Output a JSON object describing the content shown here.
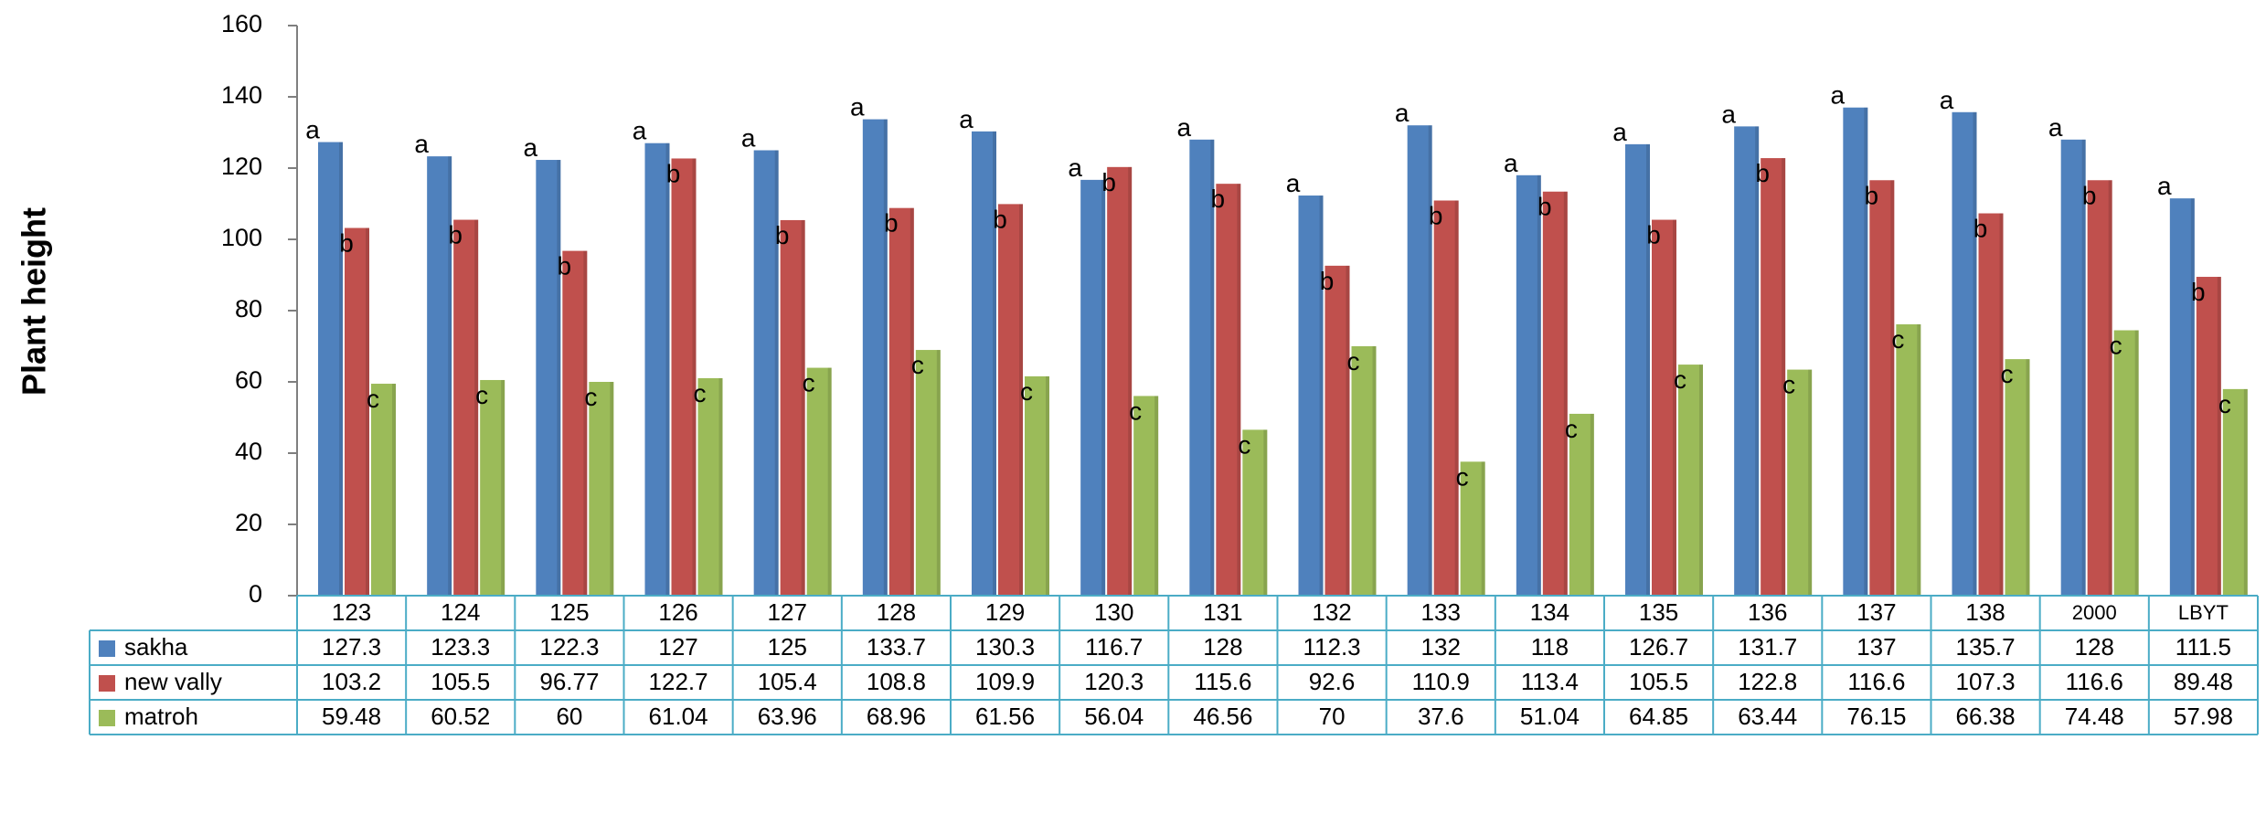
{
  "chart_data": {
    "type": "bar",
    "title": "",
    "xlabel": "",
    "ylabel": "Plant height",
    "ylim": [
      0,
      160
    ],
    "yticks": [
      0,
      20,
      40,
      60,
      80,
      100,
      120,
      140,
      160
    ],
    "grid": false,
    "legend": "data-table",
    "categories": [
      "123",
      "124",
      "125",
      "126",
      "127",
      "128",
      "129",
      "130",
      "131",
      "132",
      "133",
      "134",
      "135",
      "136",
      "137",
      "138",
      "2000",
      "LBYT"
    ],
    "series": [
      {
        "name": "sakha",
        "color": "#4F81BD",
        "values": [
          127.3,
          123.3,
          122.3,
          127,
          125,
          133.7,
          130.3,
          116.7,
          128,
          112.3,
          132,
          118,
          126.7,
          131.7,
          137,
          135.7,
          128,
          111.5
        ],
        "value_labels": [
          "127.3",
          "123.3",
          "122.3",
          "127",
          "125",
          "133.7",
          "130.3",
          "116.7",
          "128",
          "112.3",
          "132",
          "118",
          "126.7",
          "131.7",
          "137",
          "135.7",
          "128",
          "111.5"
        ],
        "letters": [
          "a",
          "a",
          "a",
          "a",
          "a",
          "a",
          "a",
          "a",
          "a",
          "a",
          "a",
          "a",
          "a",
          "a",
          "a",
          "a",
          "a",
          "a"
        ]
      },
      {
        "name": "new vally",
        "color": "#C0504D",
        "values": [
          103.2,
          105.5,
          96.77,
          122.7,
          105.4,
          108.8,
          109.9,
          120.3,
          115.6,
          92.6,
          110.9,
          113.4,
          105.5,
          122.8,
          116.6,
          107.3,
          116.6,
          89.48
        ],
        "value_labels": [
          "103.2",
          "105.5",
          "96.77",
          "122.7",
          "105.4",
          "108.8",
          "109.9",
          "120.3",
          "115.6",
          "92.6",
          "110.9",
          "113.4",
          "105.5",
          "122.8",
          "116.6",
          "107.3",
          "116.6",
          "89.48"
        ],
        "letters": [
          "b",
          "b",
          "b",
          "b",
          "b",
          "b",
          "b",
          "b",
          "b",
          "b",
          "b",
          "b",
          "b",
          "b",
          "b",
          "b",
          "b",
          "b"
        ]
      },
      {
        "name": "matroh",
        "color": "#9BBB59",
        "values": [
          59.48,
          60.52,
          60,
          61.04,
          63.96,
          68.96,
          61.56,
          56.04,
          46.56,
          70,
          37.6,
          51.04,
          64.85,
          63.44,
          76.15,
          66.38,
          74.48,
          57.98
        ],
        "value_labels": [
          "59.48",
          "60.52",
          "60",
          "61.04",
          "63.96",
          "68.96",
          "61.56",
          "56.04",
          "46.56",
          "70",
          "37.6",
          "51.04",
          "64.85",
          "63.44",
          "76.15",
          "66.38",
          "74.48",
          "57.98"
        ],
        "letters": [
          "c",
          "c",
          "c",
          "c",
          "c",
          "c",
          "c",
          "c",
          "c",
          "c",
          "c",
          "c",
          "c",
          "c",
          "c",
          "c",
          "c",
          "c"
        ]
      }
    ]
  }
}
